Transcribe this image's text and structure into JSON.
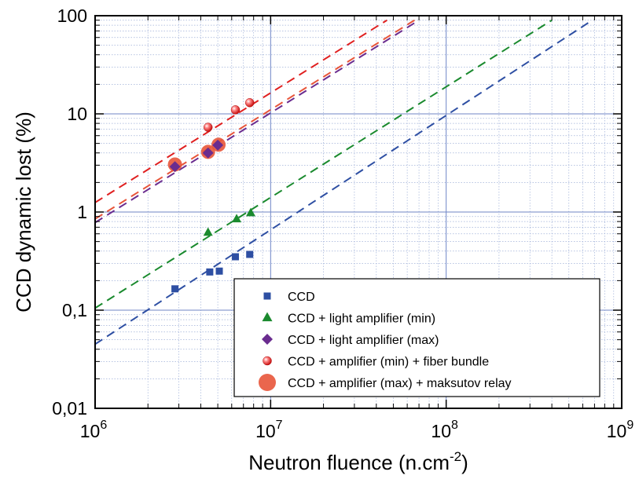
{
  "chart_data": {
    "type": "scatter",
    "title": "",
    "xlabel": "Neutron fluence (n.cm",
    "xlabel_superscript": "-2",
    "xlabel_suffix": ")",
    "ylabel": "CCD dynamic lost (%)",
    "x_scale": "log",
    "y_scale": "log",
    "xlim": [
      1000000,
      1000000000
    ],
    "ylim": [
      0.01,
      100
    ],
    "grid": true,
    "legend_position": "bottom-right",
    "x_ticks": [
      {
        "value": 1000000,
        "base": "10",
        "exp": "6"
      },
      {
        "value": 10000000,
        "base": "10",
        "exp": "7"
      },
      {
        "value": 100000000,
        "base": "10",
        "exp": "8"
      },
      {
        "value": 1000000000,
        "base": "10",
        "exp": "9"
      }
    ],
    "y_ticks": [
      {
        "value": 0.01,
        "label": "0,01"
      },
      {
        "value": 0.1,
        "label": "0,1"
      },
      {
        "value": 1,
        "label": "1"
      },
      {
        "value": 10,
        "label": "10"
      },
      {
        "value": 100,
        "label": "100"
      }
    ],
    "series": [
      {
        "name": "CCD",
        "color": "#2e4fa3",
        "marker": "square",
        "x": [
          2850000,
          4500000,
          5100000,
          6300000,
          7600000
        ],
        "y": [
          0.165,
          0.245,
          0.25,
          0.35,
          0.37
        ],
        "fit": {
          "x": [
            1000000,
            680000000
          ],
          "y": [
            0.045,
            90
          ]
        }
      },
      {
        "name": "CCD + light amplifier (min)",
        "color": "#1a8a2e",
        "marker": "triangle",
        "x": [
          4400000,
          6400000,
          7700000
        ],
        "y": [
          0.62,
          0.85,
          0.98
        ],
        "fit": {
          "x": [
            1000000,
            400000000
          ],
          "y": [
            0.105,
            90
          ]
        }
      },
      {
        "name": "CCD + light amplifier (max)",
        "color": "#6a2c8f",
        "marker": "diamond",
        "x": [
          2850000,
          4400000,
          5000000
        ],
        "y": [
          2.9,
          4.0,
          4.8
        ],
        "fit": {
          "x": [
            1000000,
            70000000
          ],
          "y": [
            0.78,
            90
          ]
        }
      },
      {
        "name": "CCD + amplifier (min) + fiber bundle",
        "color": "#e02020",
        "marker": "small-circle",
        "x": [
          4400000,
          6300000,
          7600000
        ],
        "y": [
          7.3,
          11.0,
          13.0
        ],
        "fit": {
          "x": [
            1000000,
            46000000
          ],
          "y": [
            1.25,
            90
          ]
        }
      },
      {
        "name": "CCD + amplifier (max) + maksutov relay",
        "color": "#e8553a",
        "marker": "large-circle",
        "x": [
          2850000,
          4400000,
          5050000
        ],
        "y": [
          3.05,
          4.1,
          4.85
        ],
        "fit": {
          "x": [
            1000000,
            66000000
          ],
          "y": [
            0.85,
            90
          ]
        }
      }
    ]
  }
}
